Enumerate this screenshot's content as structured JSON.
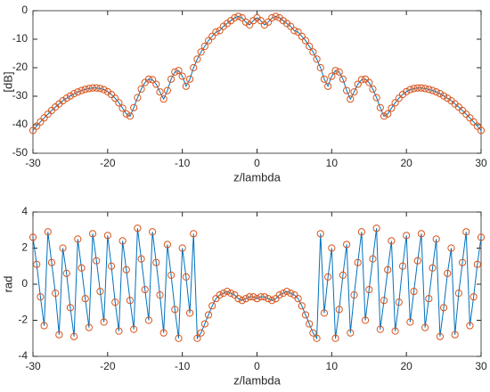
{
  "chart_data": [
    {
      "type": "line",
      "xlabel": "z/lambda",
      "ylabel": "[dB]",
      "xlim": [
        -30,
        30
      ],
      "ylim": [
        -50,
        0
      ],
      "xticks": [
        -30,
        -20,
        -10,
        0,
        10,
        20,
        30
      ],
      "yticks": [
        -50,
        -40,
        -30,
        -20,
        -10,
        0
      ],
      "x": [
        -30,
        -29.5,
        -29,
        -28.5,
        -28,
        -27.5,
        -27,
        -26.5,
        -26,
        -25.5,
        -25,
        -24.5,
        -24,
        -23.5,
        -23,
        -22.5,
        -22,
        -21.5,
        -21,
        -20.5,
        -20,
        -19.5,
        -19,
        -18.5,
        -18,
        -17.5,
        -17,
        -16.5,
        -16,
        -15.5,
        -15,
        -14.5,
        -14,
        -13.5,
        -13,
        -12.5,
        -12,
        -11.5,
        -11,
        -10.5,
        -10,
        -9.5,
        -9,
        -8.5,
        -8,
        -7.5,
        -7,
        -6.5,
        -6,
        -5.5,
        -5,
        -4.5,
        -4,
        -3.5,
        -3,
        -2.5,
        -2,
        -1.5,
        -1,
        -0.5,
        0,
        0.5,
        1,
        1.5,
        2,
        2.5,
        3,
        3.5,
        4,
        4.5,
        5,
        5.5,
        6,
        6.5,
        7,
        7.5,
        8,
        8.5,
        9,
        9.5,
        10,
        10.5,
        11,
        11.5,
        12,
        12.5,
        13,
        13.5,
        14,
        14.5,
        15,
        15.5,
        16,
        16.5,
        17,
        17.5,
        18,
        18.5,
        19,
        19.5,
        20,
        20.5,
        21,
        21.5,
        22,
        22.5,
        23,
        23.5,
        24,
        24.5,
        25,
        25.5,
        26,
        26.5,
        27,
        27.5,
        28,
        28.5,
        29,
        29.5,
        30
      ],
      "series": [
        {
          "color": "#0072bd",
          "marker_color": "#d95319",
          "values": [
            -42,
            -40.5,
            -39,
            -37.6,
            -36.3,
            -35,
            -33.8,
            -32.7,
            -31.6,
            -30.7,
            -29.9,
            -29.1,
            -28.5,
            -28,
            -27.6,
            -27.3,
            -27.1,
            -27.1,
            -27.3,
            -27.7,
            -28.4,
            -29.4,
            -30.7,
            -32.3,
            -34.2,
            -36.2,
            -37,
            -34,
            -30.5,
            -27.5,
            -25.2,
            -24,
            -24.2,
            -25.8,
            -28.5,
            -31,
            -28,
            -24,
            -21.5,
            -21,
            -23,
            -26.5,
            -24,
            -20,
            -17,
            -14.5,
            -12.5,
            -10.5,
            -9,
            -7.5,
            -7,
            -5.5,
            -4.5,
            -3.5,
            -2.5,
            -2,
            -2.5,
            -4,
            -5,
            -3.5,
            -2.5,
            -3.5,
            -5,
            -4,
            -2.5,
            -2,
            -2.5,
            -3.5,
            -4.5,
            -5.5,
            -7,
            -7.5,
            -9,
            -10.5,
            -12.5,
            -14.5,
            -17,
            -20,
            -24,
            -26.5,
            -23,
            -21,
            -21.5,
            -24,
            -28,
            -31,
            -28.5,
            -25.8,
            -24.2,
            -24,
            -25.2,
            -27.5,
            -30.5,
            -34,
            -37,
            -36.2,
            -34.2,
            -32.3,
            -30.7,
            -29.4,
            -28.4,
            -27.7,
            -27.3,
            -27.1,
            -27.1,
            -27.3,
            -27.6,
            -28,
            -28.5,
            -29.1,
            -29.9,
            -30.7,
            -31.6,
            -32.7,
            -33.8,
            -35,
            -36.3,
            -37.6,
            -39,
            -40.5,
            -42
          ]
        }
      ]
    },
    {
      "type": "line",
      "xlabel": "z/lambda",
      "ylabel": "rad",
      "xlim": [
        -30,
        30
      ],
      "ylim": [
        -4,
        4
      ],
      "xticks": [
        -30,
        -20,
        -10,
        0,
        10,
        20,
        30
      ],
      "yticks": [
        -4,
        -2,
        0,
        2,
        4
      ],
      "x": [
        -30,
        -29.5,
        -29,
        -28.5,
        -28,
        -27.5,
        -27,
        -26.5,
        -26,
        -25.5,
        -25,
        -24.5,
        -24,
        -23.5,
        -23,
        -22.5,
        -22,
        -21.5,
        -21,
        -20.5,
        -20,
        -19.5,
        -19,
        -18.5,
        -18,
        -17.5,
        -17,
        -16.5,
        -16,
        -15.5,
        -15,
        -14.5,
        -14,
        -13.5,
        -13,
        -12.5,
        -12,
        -11.5,
        -11,
        -10.5,
        -10,
        -9.5,
        -9,
        -8.5,
        -8,
        -7.5,
        -7,
        -6.5,
        -6,
        -5.5,
        -5,
        -4.5,
        -4,
        -3.5,
        -3,
        -2.5,
        -2,
        -1.5,
        -1,
        -0.5,
        0,
        0.5,
        1,
        1.5,
        2,
        2.5,
        3,
        3.5,
        4,
        4.5,
        5,
        5.5,
        6,
        6.5,
        7,
        7.5,
        8,
        8.5,
        9,
        9.5,
        10,
        10.5,
        11,
        11.5,
        12,
        12.5,
        13,
        13.5,
        14,
        14.5,
        15,
        15.5,
        16,
        16.5,
        17,
        17.5,
        18,
        18.5,
        19,
        19.5,
        20,
        20.5,
        21,
        21.5,
        22,
        22.5,
        23,
        23.5,
        24,
        24.5,
        25,
        25.5,
        26,
        26.5,
        27,
        27.5,
        28,
        28.5,
        29,
        29.5,
        30
      ],
      "series": [
        {
          "color": "#0072bd",
          "marker_color": "#d95319",
          "values": [
            2.6,
            1.1,
            -0.7,
            -2.3,
            2.9,
            1.2,
            -0.5,
            -2.8,
            2.0,
            0.6,
            -1.3,
            -2.9,
            2.5,
            0.9,
            -0.8,
            -2.4,
            2.8,
            1.3,
            -0.4,
            -2.1,
            2.7,
            1.0,
            -1.0,
            -2.6,
            2.4,
            0.8,
            -0.9,
            -2.5,
            3.1,
            1.4,
            -0.3,
            -2.0,
            2.9,
            1.2,
            -0.6,
            -2.7,
            2.2,
            0.5,
            -1.4,
            -3.0,
            2.0,
            0.4,
            -1.6,
            2.8,
            -3.0,
            -2.7,
            -2.2,
            -1.7,
            -1.2,
            -0.8,
            -0.6,
            -0.5,
            -0.4,
            -0.5,
            -0.6,
            -0.8,
            -0.9,
            -0.8,
            -0.7,
            -0.7,
            -0.8,
            -0.7,
            -0.7,
            -0.8,
            -0.9,
            -0.8,
            -0.6,
            -0.5,
            -0.4,
            -0.5,
            -0.6,
            -0.8,
            -1.2,
            -1.7,
            -2.2,
            -2.7,
            -3.0,
            2.8,
            -1.6,
            0.4,
            2.0,
            -3.0,
            -1.4,
            0.5,
            2.2,
            -2.7,
            -0.6,
            1.2,
            2.9,
            -2.0,
            -0.3,
            1.4,
            3.1,
            -2.5,
            -0.9,
            0.8,
            2.4,
            -2.6,
            -1.0,
            1.0,
            2.7,
            -2.1,
            -0.4,
            1.3,
            2.8,
            -2.4,
            -0.8,
            0.9,
            2.5,
            -2.9,
            -1.3,
            0.6,
            2.0,
            -2.8,
            -0.5,
            1.2,
            2.9,
            -2.3,
            -0.7,
            1.1,
            2.6
          ]
        }
      ]
    }
  ]
}
